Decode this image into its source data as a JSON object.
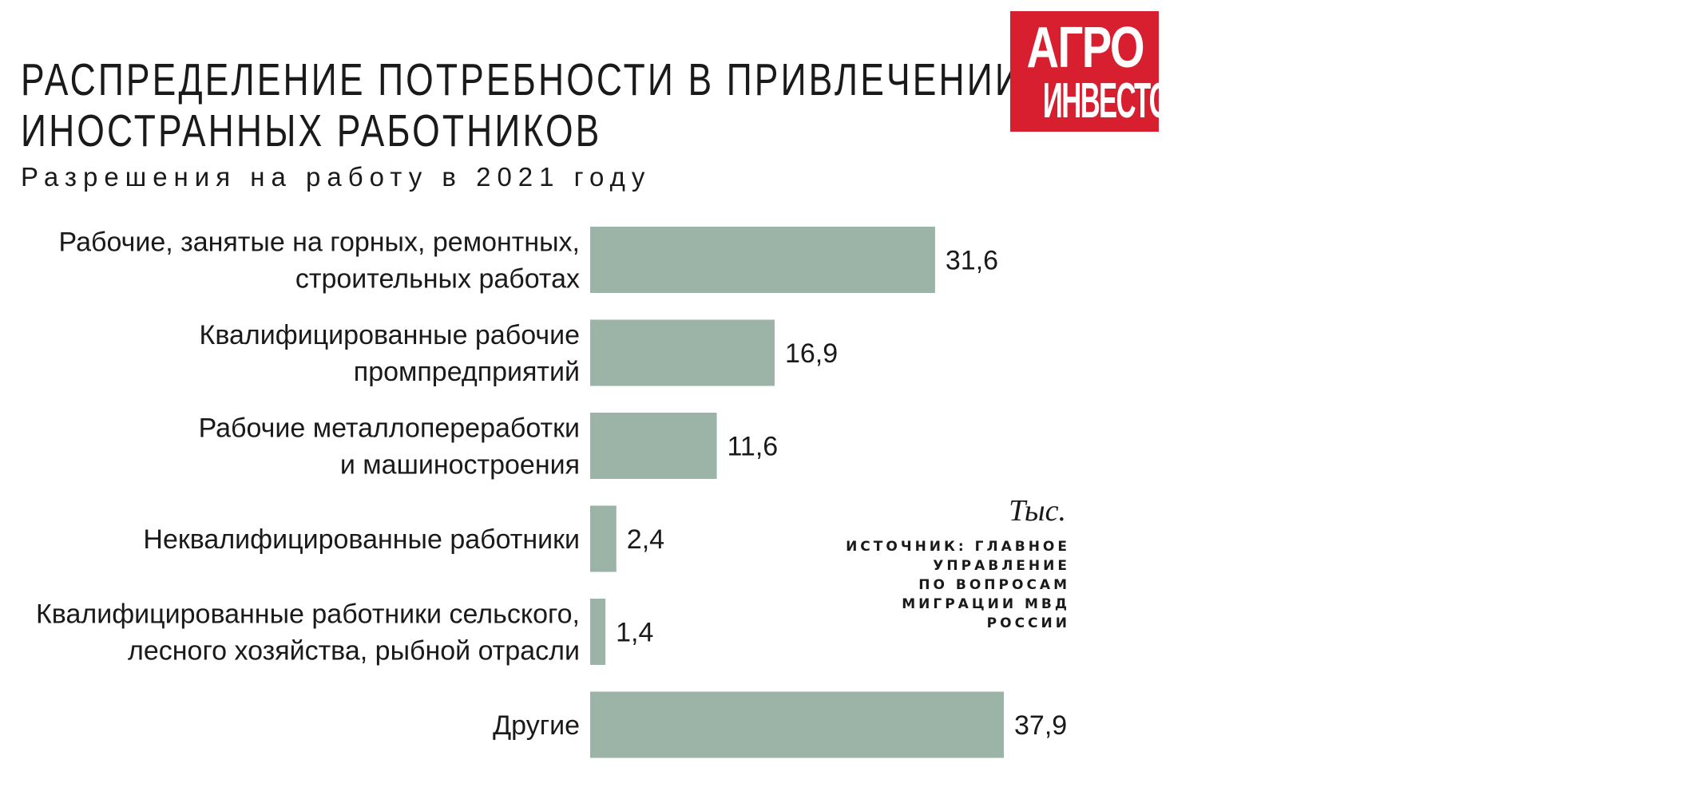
{
  "header": {
    "title_lines": [
      "РАСПРЕДЕЛЕНИЕ ПОТРЕБНОСТИ В ПРИВЛЕЧЕНИИ",
      "ИНОСТРАННЫХ РАБОТНИКОВ"
    ],
    "subtitle": "Разрешения на работу в 2021 году"
  },
  "logo": {
    "line1": "АГРО",
    "line2": "ИНВЕСТОР"
  },
  "unit": "Тыс.",
  "source_lines": [
    "ИСТОЧНИК: ГЛАВНОЕ",
    "УПРАВЛЕНИЕ",
    "ПО ВОПРОСАМ",
    "МИГРАЦИИ МВД",
    "РОССИИ"
  ],
  "colors": {
    "bar": "#9cb4a8",
    "logo_bg": "#d71f30",
    "text": "#1a1a1a"
  },
  "chart_data": {
    "type": "bar",
    "orientation": "horizontal",
    "categories": [
      [
        "Рабочие, занятые на горных, ремонтных,",
        "строительных работах"
      ],
      [
        "Квалифицированные рабочие",
        "промпредприятий"
      ],
      [
        "Рабочие металлопереработки",
        "и машиностроения"
      ],
      [
        "Неквалифицированные работники"
      ],
      [
        "Квалифицированные работники сельского,",
        "лесного хозяйства, рыбной отрасли"
      ],
      [
        "Другие"
      ]
    ],
    "values": [
      31.6,
      16.9,
      11.6,
      2.4,
      1.4,
      37.9
    ],
    "value_labels": [
      "31,6",
      "16,9",
      "11,6",
      "2,4",
      "1,4",
      "37,9"
    ],
    "title": "РАСПРЕДЕЛЕНИЕ ПОТРЕБНОСТИ В ПРИВЛЕЧЕНИИ ИНОСТРАННЫХ РАБОТНИКОВ",
    "subtitle": "Разрешения на работу в 2021 году",
    "unit": "Тыс.",
    "xlim": [
      0,
      37.9
    ],
    "grid": false,
    "legend": "none"
  }
}
